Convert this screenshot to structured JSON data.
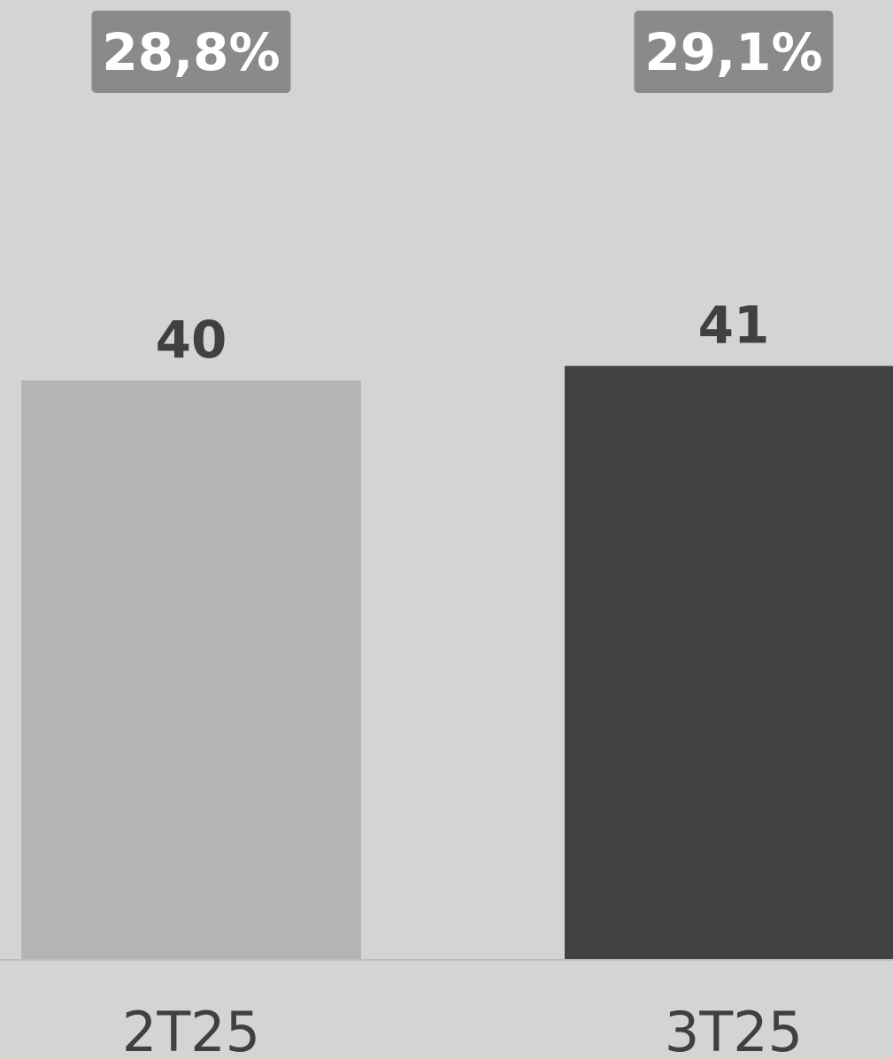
{
  "chart_data": {
    "type": "bar",
    "categories": [
      "2T25",
      "3T25"
    ],
    "values": [
      40,
      41
    ],
    "value_labels": [
      "40",
      "41"
    ],
    "percent_labels": [
      "28,8%",
      "29,1%"
    ],
    "title": "",
    "xlabel": "",
    "ylabel": "",
    "grid": false,
    "colors": {
      "background": "#d4d4d4",
      "bars": [
        "#b4b4b4",
        "#424242"
      ],
      "badge": "#8a8a8a",
      "badge_text": "#ffffff",
      "label_text": "#404040",
      "baseline": "#bdbdbd"
    }
  }
}
